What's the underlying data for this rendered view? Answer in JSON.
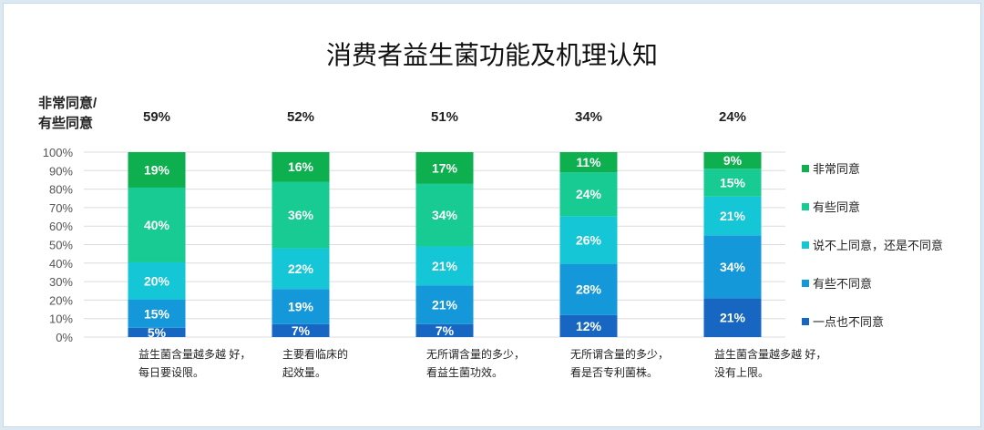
{
  "chart_data": {
    "type": "bar",
    "stacked": true,
    "title": "消费者益生菌功能及机理认知",
    "top_label": [
      "非常同意/",
      "有些同意"
    ],
    "top_values": [
      "59%",
      "52%",
      "51%",
      "34%",
      "24%"
    ],
    "categories": [
      [
        "益生菌含量越多越 好，",
        "每日要设限。"
      ],
      [
        "主要看临床的",
        "起效量。"
      ],
      [
        "无所谓含量的多少，",
        "看益生菌功效。"
      ],
      [
        "无所谓含量的多少，",
        "看是否专利菌株。"
      ],
      [
        "益生菌含量越多越 好，",
        "没有上限。"
      ]
    ],
    "series": [
      {
        "name": "一点也不同意",
        "color": "#1767c2",
        "values": [
          5,
          7,
          7,
          12,
          21
        ]
      },
      {
        "name": "有些不同意",
        "color": "#1598da",
        "values": [
          15,
          19,
          21,
          28,
          34
        ]
      },
      {
        "name": "说不上同意，还是不同意",
        "color": "#14c6d6",
        "values": [
          20,
          22,
          21,
          26,
          21
        ]
      },
      {
        "name": "有些同意",
        "color": "#17cb93",
        "values": [
          40,
          36,
          34,
          24,
          15
        ]
      },
      {
        "name": "非常同意",
        "color": "#0daf4f",
        "values": [
          19,
          16,
          17,
          11,
          9
        ]
      }
    ],
    "yticks": [
      "0%",
      "10%",
      "20%",
      "30%",
      "40%",
      "50%",
      "60%",
      "70%",
      "80%",
      "90%",
      "100%"
    ],
    "ylim": [
      0,
      100
    ],
    "grid": true,
    "legend": "right"
  }
}
